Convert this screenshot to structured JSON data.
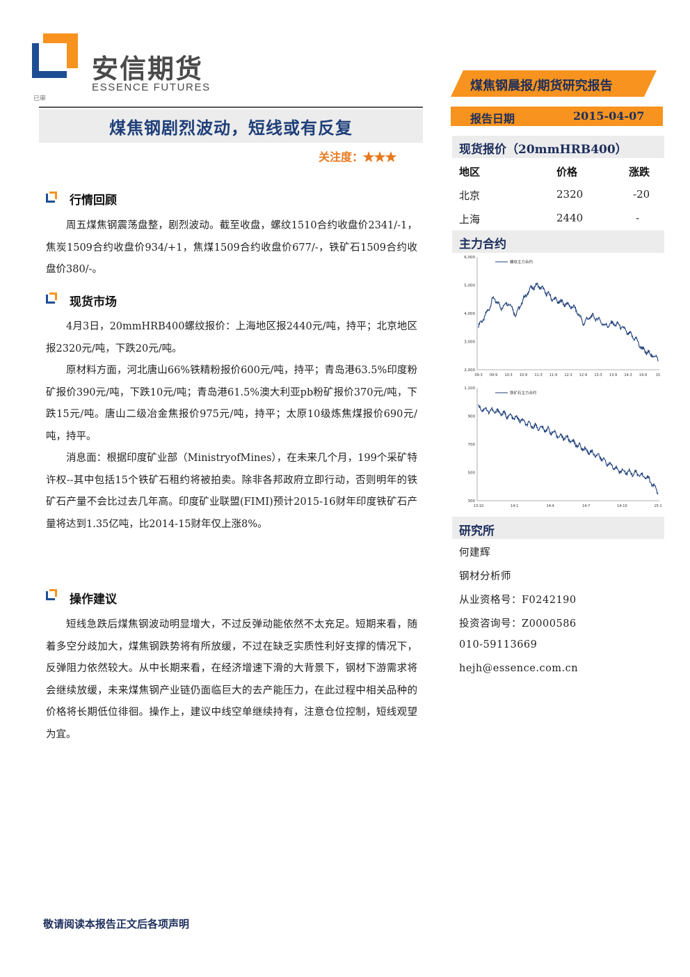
{
  "brand": {
    "name_cn": "安信期货",
    "name_en": "ESSENCE FUTURES",
    "colors": {
      "navy": "#1f3f7a",
      "orange": "#f7931e"
    }
  },
  "small_mark": "已审",
  "report_tag": "煤焦钢晨报/期货研究报告",
  "report_date": {
    "label": "报告日期",
    "value": "2015-04-07"
  },
  "title": "煤焦钢剧烈波动，短线或有反复",
  "attention": {
    "label": "关注度：",
    "stars": "★★★",
    "rating": 3
  },
  "sections": {
    "review": {
      "heading": "行情回顾",
      "paragraphs": [
        "周五煤焦钢震荡盘整，剧烈波动。截至收盘，螺纹1510合约收盘价2341/-1，焦炭1509合约收盘价934/+1，焦煤1509合约收盘价677/-，铁矿石1509合约收盘价380/-。"
      ]
    },
    "spot": {
      "heading": "现货市场",
      "paragraphs": [
        "4月3日，20mmHRB400螺纹报价：上海地区报2440元/吨，持平；北京地区报2320元/吨，下跌20元/吨。",
        "原材料方面，河北唐山66%铁精粉报价600元/吨，持平；青岛港63.5%印度粉矿报价390元/吨，下跌10元/吨；青岛港61.5%澳大利亚pb粉矿报价370元/吨，下跌15元/吨。唐山二级冶金焦报价975元/吨，持平；太原10级炼焦煤报价690元/吨，持平。",
        "消息面：根据印度矿业部（MinistryofMines），在未来几个月，199个采矿特许权--其中包括15个铁矿石租约将被拍卖。除非各邦政府立即行动，否则明年的铁矿石产量不会比过去几年高。印度矿业联盟(FIMI)预计2015-16财年印度铁矿石产量将达到1.35亿吨，比2014-15财年仅上涨8%。"
      ]
    },
    "advice": {
      "heading": "操作建议",
      "paragraphs": [
        "短线急跌后煤焦钢波动明显增大，不过反弹动能依然不太充足。短期来看，随着多空分歧加大，煤焦钢跌势将有所放缓，不过在缺乏实质性利好支撑的情况下，反弹阻力依然较大。从中长期来看，在经济增速下滑的大背景下，钢材下游需求将会继续放缓，未来煤焦钢产业链仍面临巨大的去产能压力，在此过程中相关品种的价格将长期低位徘徊。操作上，建议中线空单继续持有，注意仓位控制，短线观望为宜。"
      ]
    }
  },
  "spot_price": {
    "heading": "现货报价（20mmHRB400）",
    "columns": [
      "地区",
      "价格",
      "涨跌"
    ],
    "rows": [
      {
        "region": "北京",
        "price": "2320",
        "change": "-20"
      },
      {
        "region": "上海",
        "price": "2440",
        "change": "-"
      }
    ]
  },
  "contracts": {
    "heading": "主力合约"
  },
  "chart_data": [
    {
      "type": "line",
      "series": [
        {
          "name": "螺纹主力合约",
          "x": [
            "09-3",
            "09-6",
            "09-9",
            "10-1",
            "10-4",
            "10-7",
            "10-10",
            "11-1",
            "11-4",
            "11-7",
            "11-10",
            "12-1",
            "12-4",
            "12-7",
            "12-10",
            "13-1",
            "13-4",
            "13-7",
            "13-10",
            "14-1",
            "14-4",
            "14-7",
            "14-10",
            "15-1",
            "15-4"
          ],
          "values": [
            3550,
            3950,
            4550,
            4200,
            4400,
            3950,
            4500,
            4900,
            5000,
            4750,
            4500,
            4400,
            4300,
            4150,
            3650,
            3900,
            3800,
            3550,
            3650,
            3550,
            3300,
            3100,
            2700,
            2550,
            2400
          ]
        }
      ],
      "x_ticks": [
        "09-3",
        "09-9",
        "10-3",
        "10-9",
        "11-3",
        "11-9",
        "12-3",
        "12-9",
        "13-3",
        "13-9",
        "14-3",
        "14-9",
        "15"
      ],
      "y_ticks": [
        "2,000",
        "3,000",
        "4,000",
        "5,000",
        "6,000"
      ],
      "ylim": [
        2000,
        6000
      ],
      "legend": "top-left"
    },
    {
      "type": "line",
      "series": [
        {
          "name": "铁矿石主力合约",
          "x": [
            "13-10",
            "13-11",
            "13-12",
            "14-1",
            "14-2",
            "14-3",
            "14-4",
            "14-5",
            "14-6",
            "14-7",
            "14-8",
            "14-9",
            "14-10",
            "14-11",
            "14-12",
            "15-1",
            "15-2",
            "15-3",
            "15-4"
          ],
          "values": [
            960,
            940,
            930,
            900,
            880,
            840,
            820,
            800,
            760,
            740,
            690,
            650,
            620,
            560,
            520,
            500,
            490,
            460,
            360
          ]
        }
      ],
      "x_ticks": [
        "13-10",
        "14-1",
        "14-4",
        "14-7",
        "14-10",
        "15-1"
      ],
      "y_ticks": [
        "300",
        "500",
        "700",
        "900",
        "1,100"
      ],
      "ylim": [
        300,
        1100
      ],
      "legend": "top-left"
    }
  ],
  "institute": {
    "heading": "研究所",
    "name": "何建辉",
    "role": "钢材分析师",
    "license": "从业资格号：F0242190",
    "consult": "投资咨询号：Z0000586",
    "phone": "010-59113669",
    "email": "hejh@essence.com.cn"
  },
  "footer": "敬请阅读本报告正文后各项声明"
}
